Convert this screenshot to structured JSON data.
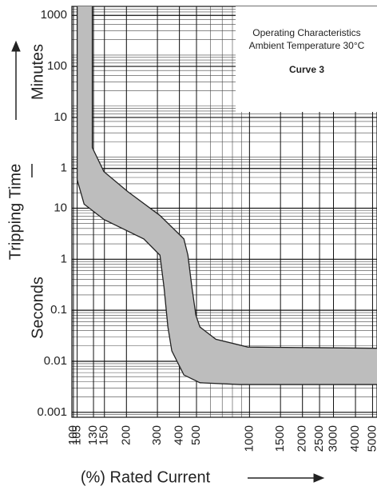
{
  "chart_data": {
    "type": "band",
    "annotations": [
      "Operating Characteristics",
      "Ambient Temperature 30°C",
      "Curve 3"
    ],
    "y_title": "Tripping Time",
    "y_units": [
      "Minutes",
      "Seconds"
    ],
    "x_title": "(%) Rated Current",
    "log_x": true,
    "log_y": true,
    "grid": true,
    "color": "#bdbdbd",
    "xlim": [
      98,
      5300
    ],
    "ylim": [
      0.0008,
      90000
    ],
    "xticks": [
      100,
      105,
      130,
      150,
      200,
      300,
      400,
      500,
      1000,
      1500,
      2000,
      2500,
      3000,
      4000,
      5000
    ],
    "yticks": [
      {
        "value": 60000,
        "label": "1000"
      },
      {
        "value": 6000,
        "label": "100"
      },
      {
        "value": 600,
        "label": "10"
      },
      {
        "value": 60,
        "label": "1"
      },
      10,
      1,
      0.1,
      0.01,
      0.001
    ],
    "series": [
      {
        "x": [
          128,
          128,
          149,
          204,
          310,
          424,
          447,
          471,
          496,
          523,
          644,
          979,
          5300
        ],
        "values": [
          90000,
          154,
          52,
          21,
          7.2,
          2.5,
          1.2,
          0.28,
          0.08,
          0.047,
          0.027,
          0.019,
          0.018
        ]
      },
      {
        "x": [
          105,
          105,
          115,
          149,
          251,
          310,
          327,
          344,
          362,
          424,
          523,
          882,
          5300
        ],
        "values": [
          90000,
          36,
          12,
          6,
          2.5,
          1.2,
          0.28,
          0.047,
          0.016,
          0.0054,
          0.0038,
          0.0035,
          0.0035
        ]
      }
    ]
  }
}
